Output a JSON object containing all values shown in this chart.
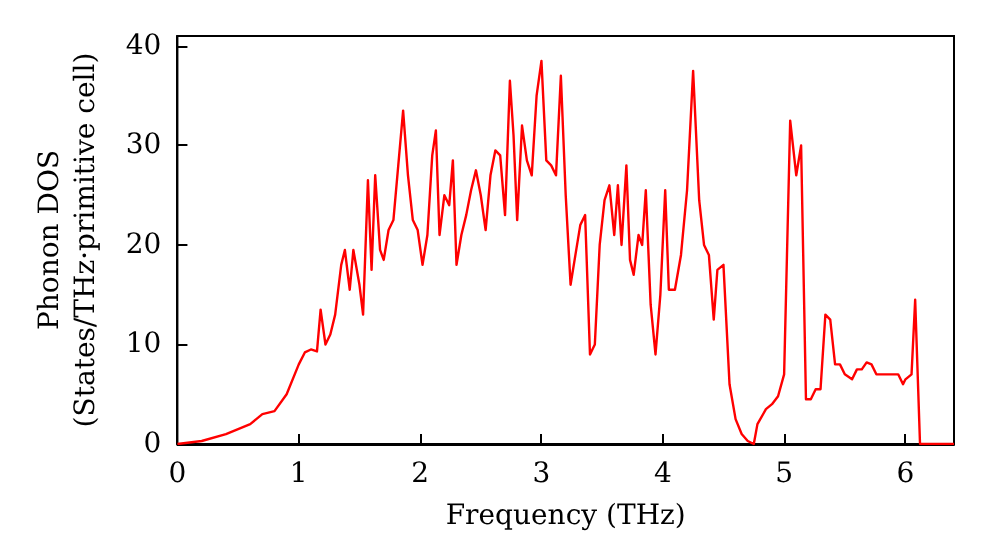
{
  "chart_data": {
    "type": "line",
    "xlabel": "Frequency (THz)",
    "ylabel": "Phonon DOS\n(States/THz·primitive cell)",
    "xlim": [
      0,
      6.4
    ],
    "xticks": [
      0,
      1,
      2,
      3,
      4,
      5,
      6
    ],
    "ylim": [
      0,
      41
    ],
    "yticks": [
      0,
      10,
      20,
      30,
      40
    ],
    "marker": "none",
    "line_style": "solid",
    "series": [
      {
        "color": "#ff0000",
        "x": [
          0,
          0.2,
          0.4,
          0.6,
          0.7,
          0.8,
          0.9,
          1.0,
          1.05,
          1.1,
          1.15,
          1.18,
          1.22,
          1.26,
          1.3,
          1.35,
          1.38,
          1.42,
          1.45,
          1.5,
          1.53,
          1.57,
          1.6,
          1.63,
          1.67,
          1.7,
          1.74,
          1.78,
          1.82,
          1.86,
          1.9,
          1.94,
          1.98,
          2.02,
          2.06,
          2.1,
          2.13,
          2.16,
          2.2,
          2.24,
          2.27,
          2.3,
          2.34,
          2.38,
          2.42,
          2.46,
          2.5,
          2.54,
          2.58,
          2.62,
          2.66,
          2.7,
          2.74,
          2.77,
          2.8,
          2.84,
          2.88,
          2.92,
          2.96,
          3.0,
          3.04,
          3.08,
          3.12,
          3.16,
          3.2,
          3.24,
          3.28,
          3.32,
          3.36,
          3.4,
          3.44,
          3.48,
          3.52,
          3.56,
          3.6,
          3.63,
          3.66,
          3.7,
          3.73,
          3.76,
          3.8,
          3.83,
          3.86,
          3.9,
          3.94,
          3.98,
          4.02,
          4.05,
          4.1,
          4.15,
          4.2,
          4.25,
          4.3,
          4.34,
          4.38,
          4.42,
          4.45,
          4.5,
          4.55,
          4.6,
          4.65,
          4.7,
          4.75,
          4.78,
          4.85,
          4.9,
          4.95,
          5.0,
          5.05,
          5.1,
          5.14,
          5.18,
          5.22,
          5.26,
          5.3,
          5.34,
          5.38,
          5.42,
          5.46,
          5.5,
          5.56,
          5.6,
          5.64,
          5.68,
          5.72,
          5.76,
          5.82,
          5.9,
          5.94,
          5.98,
          6.0,
          6.05,
          6.08,
          6.12,
          6.4
        ],
        "values": [
          0,
          0.3,
          1,
          2,
          3,
          3.3,
          5,
          8,
          9.2,
          9.5,
          9.3,
          13.5,
          10,
          11,
          13,
          18,
          19.5,
          15.5,
          19.5,
          16,
          13,
          26.5,
          17.5,
          27,
          19.5,
          18.5,
          21.5,
          22.5,
          28,
          33.5,
          27,
          22.5,
          21.5,
          18,
          21,
          29,
          31.5,
          21,
          25,
          24,
          28.5,
          18,
          21,
          23,
          25.5,
          27.5,
          25,
          21.5,
          27,
          29.5,
          29,
          23,
          36.5,
          31,
          22.5,
          32,
          28.5,
          27,
          35,
          38.5,
          28.5,
          28,
          27,
          37,
          25,
          16,
          19,
          22,
          23,
          9,
          10,
          20,
          24.5,
          26,
          21,
          26,
          20,
          28,
          18.5,
          17,
          21,
          20,
          25.5,
          14,
          9,
          15,
          25.5,
          15.5,
          15.5,
          19,
          25.5,
          37.5,
          24.5,
          20,
          19,
          12.5,
          17.5,
          18,
          6,
          2.5,
          1,
          0.3,
          0,
          2,
          3.5,
          4,
          4.8,
          7,
          32.5,
          27,
          30,
          4.5,
          4.5,
          5.5,
          5.5,
          13,
          12.5,
          8,
          8,
          7,
          6.5,
          7.5,
          7.5,
          8.2,
          8,
          7,
          7,
          7,
          7,
          6,
          6.5,
          7,
          14.5,
          0,
          0
        ]
      }
    ]
  }
}
